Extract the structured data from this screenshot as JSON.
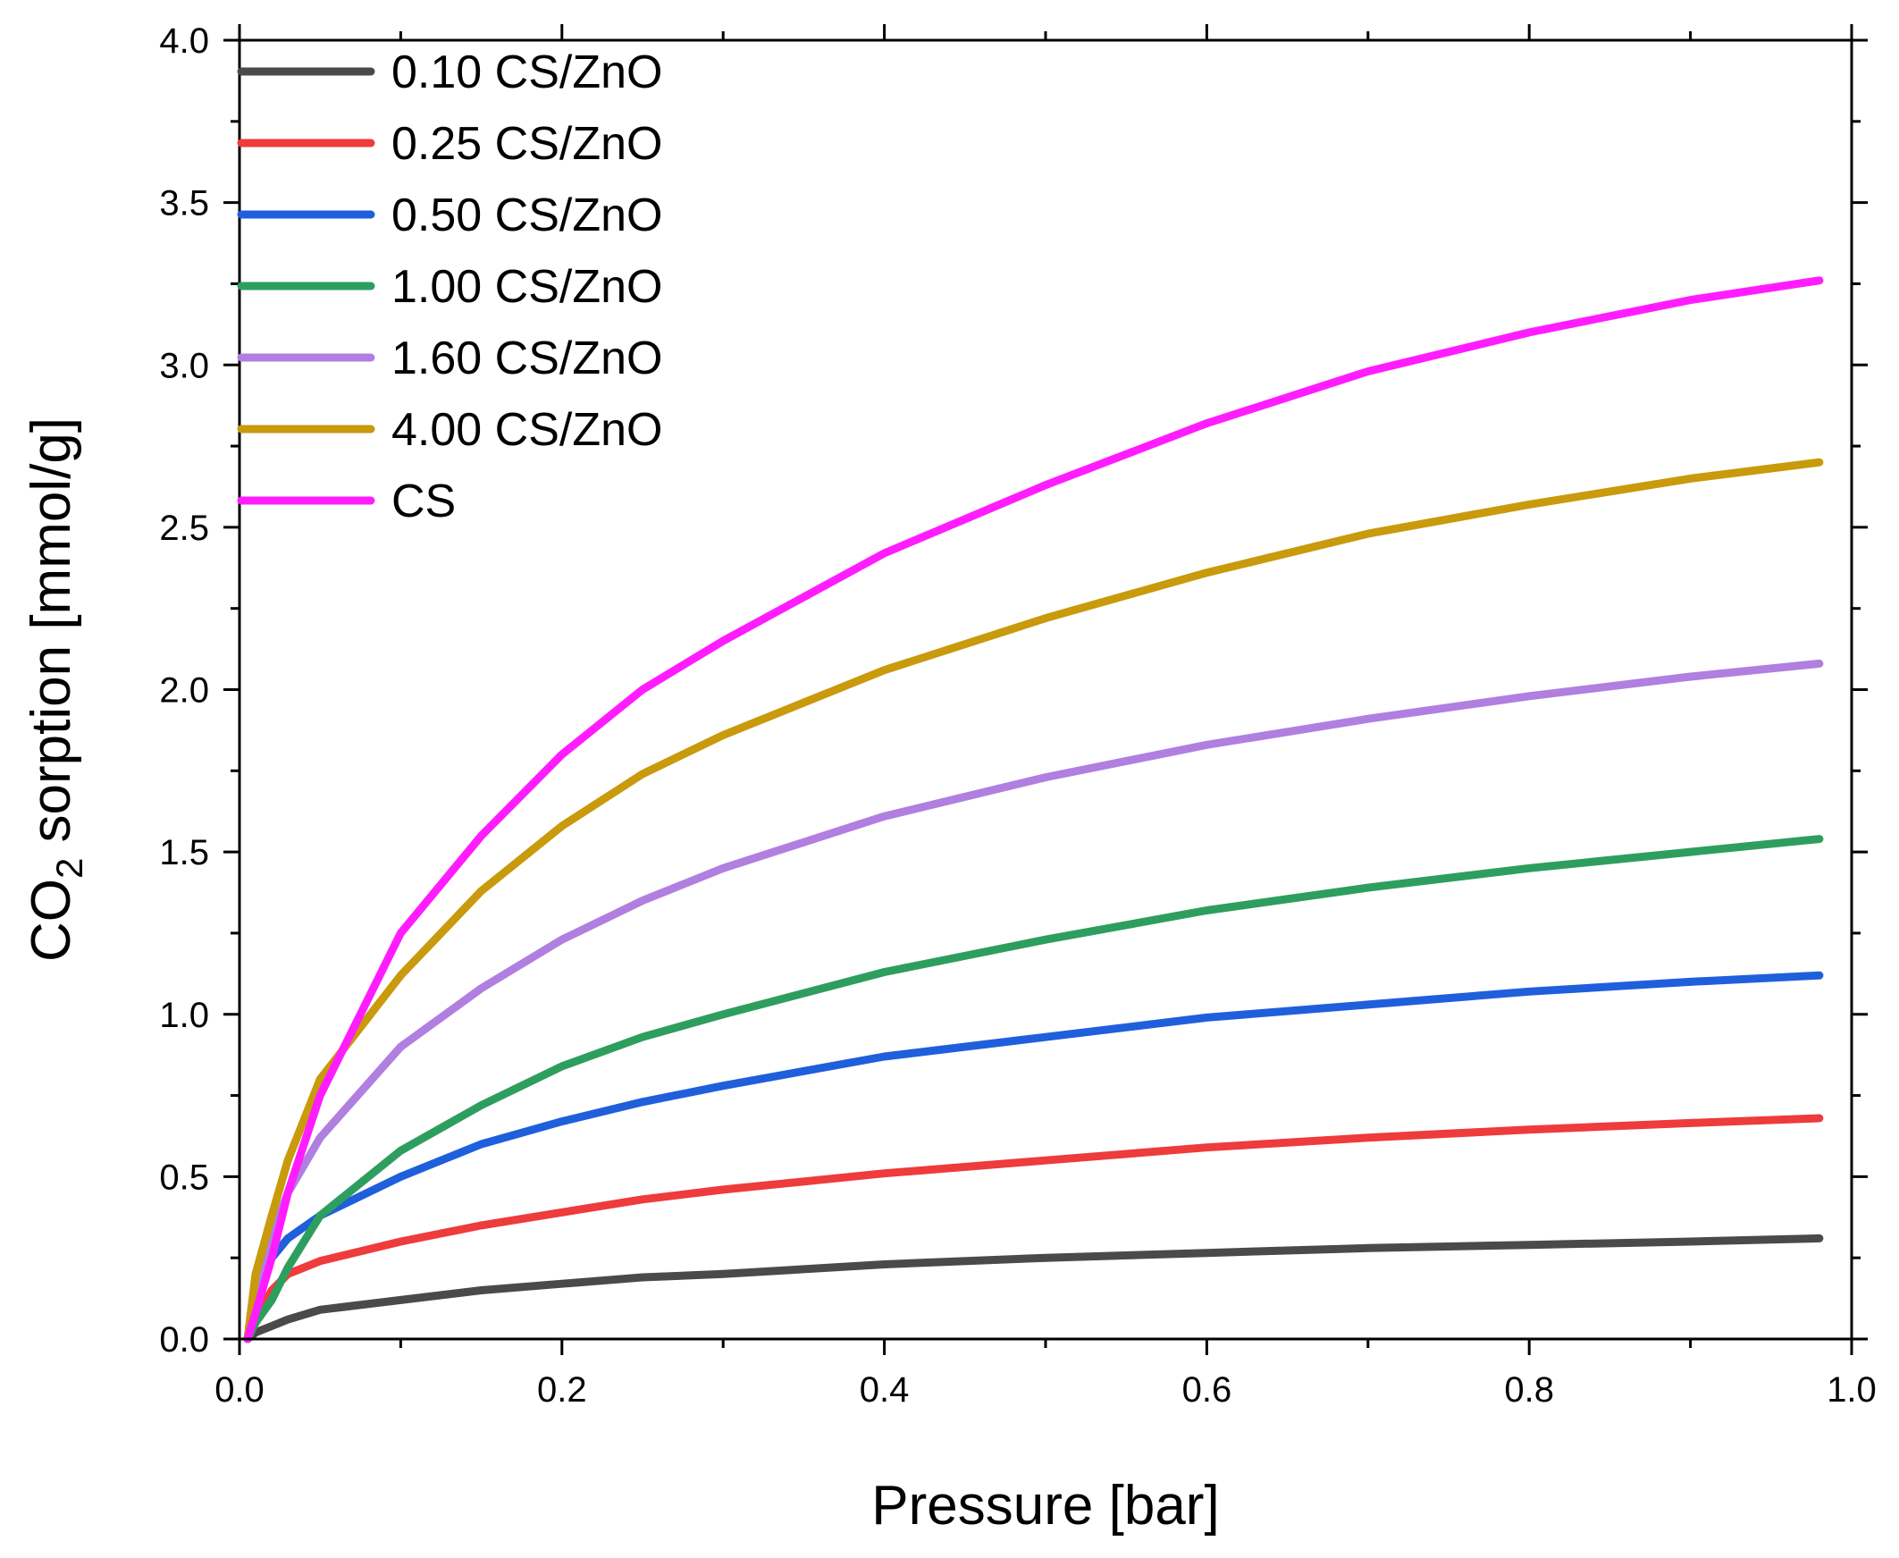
{
  "chart_data": {
    "type": "line",
    "title": "",
    "xlabel": "Pressure [bar]",
    "ylabel_parts": [
      "CO",
      "2",
      " sorption [mmol/g]"
    ],
    "xlim": [
      0.0,
      1.0
    ],
    "ylim": [
      0.0,
      4.0
    ],
    "x_ticks": [
      {
        "value": 0.0,
        "label": "0.0"
      },
      {
        "value": 0.2,
        "label": "0.2"
      },
      {
        "value": 0.4,
        "label": "0.4"
      },
      {
        "value": 0.6,
        "label": "0.6"
      },
      {
        "value": 0.8,
        "label": "0.8"
      },
      {
        "value": 1.0,
        "label": "1.0"
      }
    ],
    "y_ticks": [
      {
        "value": 0.0,
        "label": "0.0"
      },
      {
        "value": 0.5,
        "label": "0.5"
      },
      {
        "value": 1.0,
        "label": "1.0"
      },
      {
        "value": 1.5,
        "label": "1.5"
      },
      {
        "value": 2.0,
        "label": "2.0"
      },
      {
        "value": 2.5,
        "label": "2.5"
      },
      {
        "value": 3.0,
        "label": "3.0"
      },
      {
        "value": 3.5,
        "label": "3.5"
      },
      {
        "value": 4.0,
        "label": "4.0"
      }
    ],
    "grid": false,
    "legend_position": "top-left",
    "x": [
      0.005,
      0.01,
      0.02,
      0.03,
      0.05,
      0.1,
      0.15,
      0.2,
      0.25,
      0.3,
      0.4,
      0.5,
      0.6,
      0.7,
      0.8,
      0.9,
      0.98
    ],
    "series": [
      {
        "name": "0.10 CS/ZnO",
        "color": "#4a4a4a",
        "values": [
          0.0,
          0.02,
          0.04,
          0.06,
          0.09,
          0.12,
          0.15,
          0.17,
          0.19,
          0.2,
          0.23,
          0.25,
          0.265,
          0.28,
          0.29,
          0.3,
          0.31
        ]
      },
      {
        "name": "0.25 CS/ZnO",
        "color": "#ee3b3b",
        "values": [
          0.0,
          0.06,
          0.15,
          0.2,
          0.24,
          0.3,
          0.35,
          0.39,
          0.43,
          0.46,
          0.51,
          0.55,
          0.59,
          0.62,
          0.645,
          0.665,
          0.68
        ]
      },
      {
        "name": "0.50 CS/ZnO",
        "color": "#1f5fdc",
        "values": [
          0.0,
          0.18,
          0.25,
          0.31,
          0.38,
          0.5,
          0.6,
          0.67,
          0.73,
          0.78,
          0.87,
          0.93,
          0.99,
          1.03,
          1.07,
          1.1,
          1.12
        ]
      },
      {
        "name": "1.00 CS/ZnO",
        "color": "#2e9e5e",
        "values": [
          0.0,
          0.05,
          0.12,
          0.22,
          0.38,
          0.58,
          0.72,
          0.84,
          0.93,
          1.0,
          1.13,
          1.23,
          1.32,
          1.39,
          1.45,
          1.5,
          1.54
        ]
      },
      {
        "name": "1.60 CS/ZnO",
        "color": "#b07fe0",
        "values": [
          0.0,
          0.15,
          0.32,
          0.45,
          0.62,
          0.9,
          1.08,
          1.23,
          1.35,
          1.45,
          1.61,
          1.73,
          1.83,
          1.91,
          1.98,
          2.04,
          2.08
        ]
      },
      {
        "name": "4.00 CS/ZnO",
        "color": "#c89a0c",
        "values": [
          0.0,
          0.2,
          0.38,
          0.55,
          0.8,
          1.12,
          1.38,
          1.58,
          1.74,
          1.86,
          2.06,
          2.22,
          2.36,
          2.48,
          2.57,
          2.65,
          2.7
        ]
      },
      {
        "name": "CS",
        "color": "#ff1dff",
        "values": [
          0.0,
          0.08,
          0.25,
          0.45,
          0.75,
          1.25,
          1.55,
          1.8,
          2.0,
          2.15,
          2.42,
          2.63,
          2.82,
          2.98,
          3.1,
          3.2,
          3.26
        ]
      }
    ]
  }
}
